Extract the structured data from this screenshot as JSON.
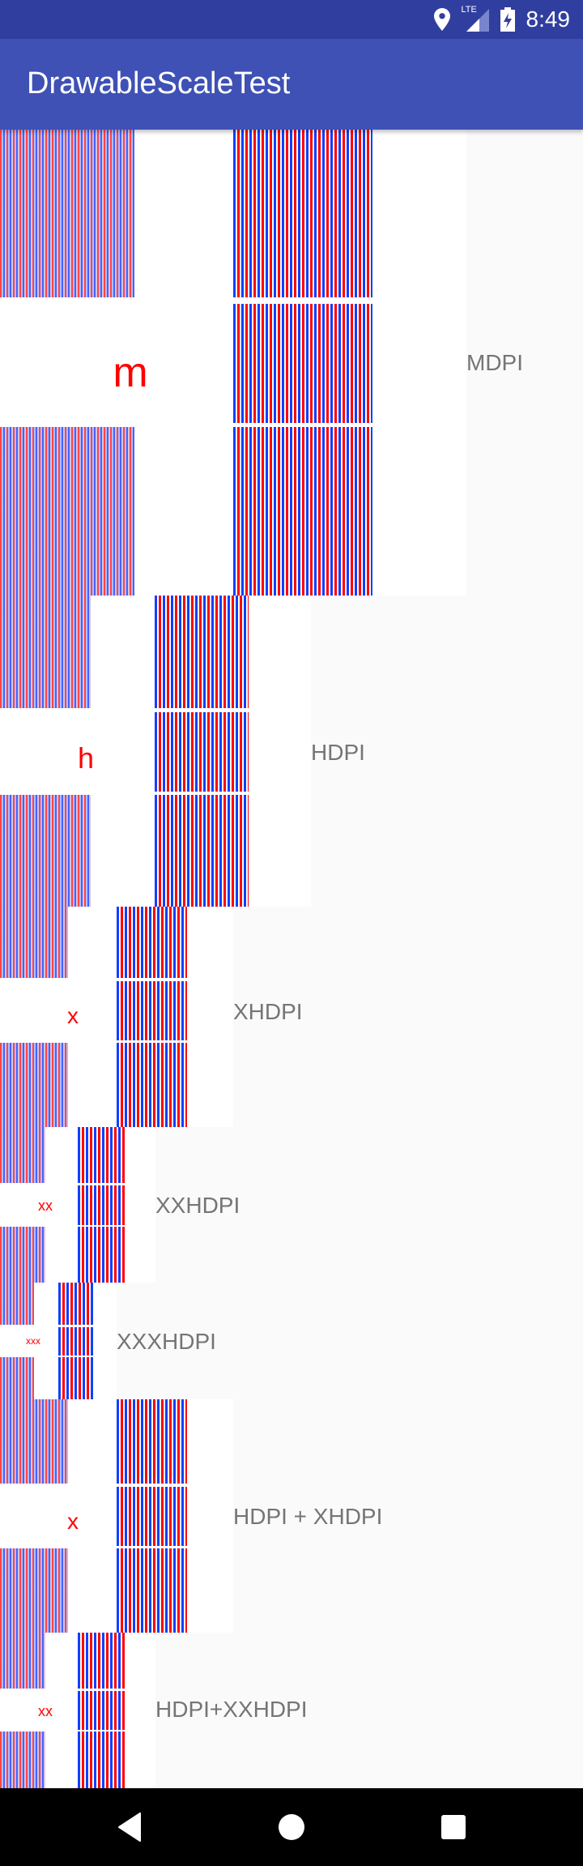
{
  "status_bar": {
    "time": "8:49",
    "network": "LTE",
    "icons": [
      "location-icon",
      "lte-signal-icon",
      "battery-charging-icon"
    ]
  },
  "toolbar": {
    "title": "DrawableScaleTest"
  },
  "sections": [
    {
      "label": "MDPI",
      "char": "m"
    },
    {
      "label": "HDPI",
      "char": "h"
    },
    {
      "label": "XHDPI",
      "char": "x"
    },
    {
      "label": "XXHDPI",
      "char": "xx"
    },
    {
      "label": "XXXHDPI",
      "char": "xxx"
    },
    {
      "label": "HDPI + XHDPI",
      "char": "x"
    },
    {
      "label": "HDPI+XXHDPI",
      "char": "xx"
    }
  ],
  "nav_bar": {
    "buttons": [
      "back",
      "home",
      "recents"
    ]
  },
  "colors": {
    "status_bar": "#303f9f",
    "toolbar": "#3f51b5",
    "stripe_red": "#ff0000",
    "stripe_blue": "#1040ff",
    "label": "#757575",
    "background": "#fafafa"
  }
}
